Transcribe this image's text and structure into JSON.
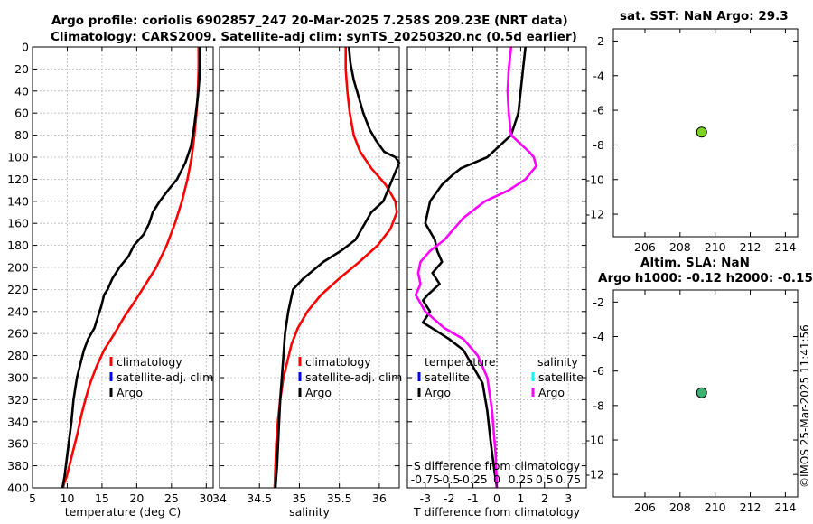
{
  "titles": {
    "main_line1": "Argo profile: coriolis 6902857_247 20-Mar-2025 7.258S 209.23E (NRT data)",
    "main_line2": "Climatology: CARS2009. Satellite-adj clim: synTS_20250320.nc (0.5d earlier)",
    "sst": "sat. SST: NaN Argo: 29.3",
    "sla_line1": "Altim. SLA: NaN",
    "sla_line2": "Argo h1000: -0.12 h2000: -0.15"
  },
  "timestamp": "©IMOS 25-Mar-2025 11:41:56",
  "colors": {
    "climatology": "#ff0000",
    "satellite": "#0000ff",
    "argo": "#000000",
    "salinity": "#ff00ff",
    "salinity_sat": "#00ffff",
    "marker": "#7ed321",
    "marker_sla": "#3cb371"
  },
  "chart_data": [
    {
      "type": "line",
      "id": "temperature",
      "xlabel": "temperature (deg C)",
      "ylabel": "",
      "xlim": [
        5,
        31
      ],
      "ylim": [
        400,
        0
      ],
      "xticks": [
        5,
        10,
        15,
        20,
        25,
        30
      ],
      "yticks": [
        0,
        20,
        40,
        60,
        80,
        100,
        120,
        140,
        160,
        180,
        200,
        220,
        240,
        260,
        280,
        300,
        320,
        340,
        360,
        380,
        400
      ],
      "legend": [
        "climatology",
        "satellite-adj. clim",
        "Argo"
      ],
      "series": [
        {
          "name": "climatology",
          "color": "#ff0000",
          "x": [
            28.9,
            28.9,
            28.8,
            28.6,
            28.3,
            27.9,
            27.3,
            26.5,
            25.5,
            24.3,
            22.8,
            21.3,
            19.8,
            18.2,
            16.8,
            15.3,
            14.2,
            13.3,
            12.6,
            12.0,
            11.5,
            11.1,
            10.7,
            10.3,
            9.9,
            9.6,
            9.4
          ],
          "y": [
            0,
            20,
            40,
            60,
            80,
            100,
            120,
            140,
            160,
            180,
            200,
            215,
            230,
            245,
            260,
            275,
            290,
            305,
            320,
            335,
            350,
            360,
            370,
            380,
            390,
            395,
            400
          ]
        },
        {
          "name": "Argo",
          "color": "#000000",
          "x": [
            29.1,
            29.1,
            29.0,
            28.8,
            28.5,
            28.2,
            27.8,
            27.0,
            25.8,
            24.5,
            23.3,
            22.3,
            21.8,
            21.0,
            19.6,
            18.8,
            17.5,
            16.5,
            15.8,
            15.3,
            14.9,
            14.4,
            13.9,
            13.0,
            12.4,
            12.0,
            11.4,
            10.9,
            10.6,
            10.2,
            9.9,
            9.6,
            9.3
          ],
          "y": [
            0,
            15,
            30,
            45,
            60,
            75,
            90,
            105,
            120,
            130,
            140,
            150,
            160,
            170,
            180,
            190,
            200,
            210,
            220,
            225,
            235,
            245,
            255,
            265,
            275,
            285,
            300,
            320,
            340,
            360,
            375,
            390,
            400
          ]
        }
      ]
    },
    {
      "type": "line",
      "id": "salinity",
      "xlabel": "salinity",
      "ylabel": "",
      "xlim": [
        34,
        36.25
      ],
      "ylim": [
        400,
        0
      ],
      "xticks": [
        34,
        34.5,
        35,
        35.5,
        36
      ],
      "yticks": [
        0,
        20,
        40,
        60,
        80,
        100,
        120,
        140,
        160,
        180,
        200,
        220,
        240,
        260,
        280,
        300,
        320,
        340,
        360,
        380,
        400
      ],
      "legend": [
        "climatology",
        "satellite-adj. clim",
        "Argo"
      ],
      "series": [
        {
          "name": "climatology",
          "color": "#ff0000",
          "x": [
            35.58,
            35.58,
            35.6,
            35.63,
            35.68,
            35.76,
            35.9,
            36.08,
            36.2,
            36.22,
            36.14,
            35.98,
            35.75,
            35.5,
            35.27,
            35.1,
            34.98,
            34.9,
            34.85,
            34.8,
            34.76,
            34.73,
            34.71,
            34.7,
            34.69
          ],
          "y": [
            0,
            20,
            40,
            60,
            80,
            95,
            110,
            125,
            140,
            150,
            165,
            180,
            195,
            210,
            225,
            240,
            255,
            270,
            285,
            300,
            320,
            340,
            360,
            380,
            400
          ]
        },
        {
          "name": "Argo",
          "color": "#000000",
          "x": [
            35.62,
            35.64,
            35.68,
            35.74,
            35.8,
            35.88,
            35.96,
            36.06,
            36.2,
            36.25,
            36.05,
            35.9,
            35.82,
            35.7,
            35.52,
            35.3,
            35.05,
            34.92,
            34.86,
            34.82,
            34.8,
            34.78,
            34.76,
            34.74,
            34.72,
            34.7
          ],
          "y": [
            0,
            15,
            30,
            45,
            60,
            75,
            85,
            95,
            100,
            105,
            140,
            150,
            160,
            175,
            185,
            195,
            210,
            220,
            240,
            260,
            280,
            300,
            320,
            350,
            380,
            400
          ]
        }
      ]
    },
    {
      "type": "line",
      "id": "differences",
      "xlabel": "T difference from climatology",
      "xlabel_top": "S difference from climatology",
      "xlim": [
        -3.75,
        3.75
      ],
      "ylim": [
        400,
        0
      ],
      "xticks": [
        -3,
        -2,
        -1,
        0,
        1,
        2,
        3
      ],
      "xtick_labels_top": [
        "-0.75",
        "-0.5",
        "-0.25",
        "0",
        "0.25",
        "0.5",
        "0.75"
      ],
      "yticks": [
        0,
        20,
        40,
        60,
        80,
        100,
        120,
        140,
        160,
        180,
        200,
        220,
        240,
        260,
        280,
        300,
        320,
        340,
        360,
        380,
        400
      ],
      "legend_temperature": {
        "title": "temperature",
        "items": [
          "satellite",
          "Argo"
        ]
      },
      "legend_salinity": {
        "title": "salinity",
        "items": [
          "satellite",
          "Argo"
        ]
      },
      "series": [
        {
          "name": "temperature Argo",
          "color": "#000000",
          "x": [
            1.2,
            1.1,
            1.0,
            0.9,
            0.6,
            0.1,
            -0.4,
            -1.5,
            -1.8,
            -2.3,
            -2.8,
            -3.0,
            -2.6,
            -2.5,
            -2.3,
            -2.7,
            -2.4,
            -2.9,
            -3.1,
            -2.8,
            -3.1,
            -2.5,
            -2.0,
            -1.4,
            -1.0,
            -0.6,
            -0.4,
            -0.25,
            -0.1,
            0.0
          ],
          "y": [
            0,
            20,
            40,
            60,
            80,
            90,
            100,
            110,
            115,
            125,
            140,
            160,
            175,
            185,
            195,
            205,
            215,
            225,
            230,
            240,
            250,
            258,
            265,
            275,
            290,
            305,
            330,
            360,
            385,
            400
          ]
        },
        {
          "name": "salinity Argo",
          "color": "#ff00ff",
          "x": [
            0.6,
            0.5,
            0.45,
            0.5,
            0.6,
            1.1,
            1.35,
            1.55,
            1.65,
            1.2,
            0.5,
            -0.5,
            -1.4,
            -1.8,
            -2.2,
            -2.8,
            -3.2,
            -3.3,
            -3.2,
            -3.4,
            -3.0,
            -2.2,
            -1.4,
            -0.8,
            -0.4,
            -0.2,
            -0.05,
            0.0
          ],
          "y": [
            0,
            20,
            40,
            60,
            80,
            90,
            95,
            100,
            108,
            120,
            130,
            140,
            155,
            165,
            175,
            185,
            195,
            205,
            215,
            225,
            240,
            255,
            265,
            280,
            300,
            330,
            370,
            400
          ]
        }
      ]
    },
    {
      "type": "scatter",
      "id": "sst_position",
      "title": "sat. SST: NaN Argo: 29.3",
      "xlim": [
        204.2,
        214.7
      ],
      "ylim": [
        -13.3,
        -1.3
      ],
      "xticks": [
        206,
        208,
        210,
        212,
        214
      ],
      "yticks": [
        -2,
        -4,
        -6,
        -8,
        -10,
        -12
      ],
      "points": [
        {
          "x": 209.23,
          "y": -7.258
        }
      ]
    },
    {
      "type": "scatter",
      "id": "sla_position",
      "title": "Altim. SLA: NaN",
      "xlim": [
        204.2,
        214.7
      ],
      "ylim": [
        -13.3,
        -1.3
      ],
      "xticks": [
        206,
        208,
        210,
        212,
        214
      ],
      "yticks": [
        -2,
        -4,
        -6,
        -8,
        -10,
        -12
      ],
      "points": [
        {
          "x": 209.23,
          "y": -7.258
        }
      ]
    }
  ]
}
